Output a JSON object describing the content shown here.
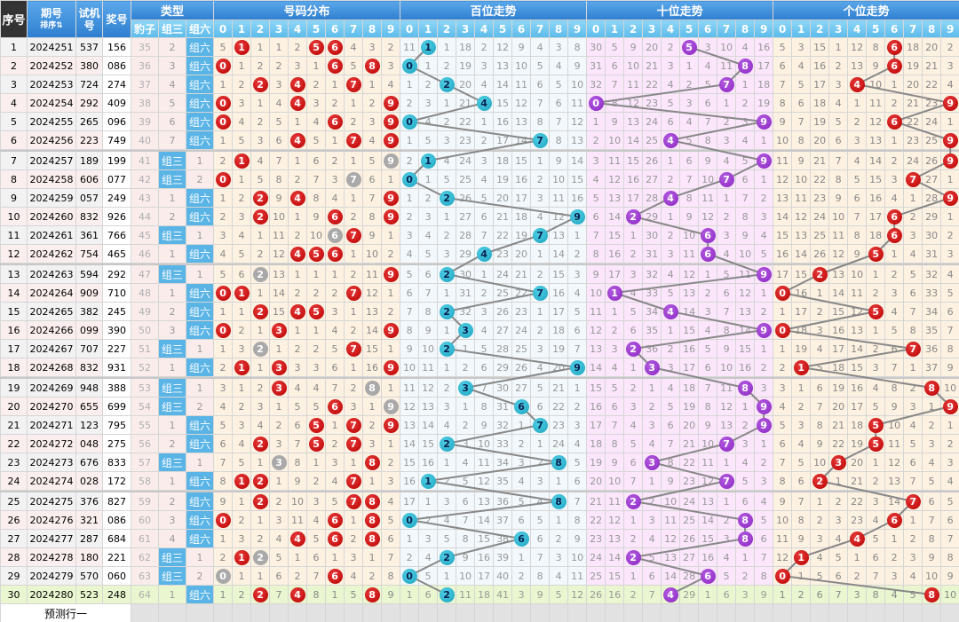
{
  "header": {
    "seq": "序号",
    "issue": "期号",
    "sort_label": "排序",
    "test": "试机号",
    "prize": "奖号",
    "type": "类型",
    "type_cols": [
      "豹子",
      "组三",
      "组六"
    ],
    "sections": [
      "号码分布",
      "百位走势",
      "十位走势",
      "个位走势"
    ],
    "digits": [
      "0",
      "1",
      "2",
      "3",
      "4",
      "5",
      "6",
      "7",
      "8",
      "9"
    ]
  },
  "colors": {
    "dist_hit": "#cc0000",
    "dup_hit": "#a9a9a9",
    "hundreds": "#29b6d0",
    "tens": "#9933cc",
    "units": "#cc0000",
    "line": "#888888"
  },
  "first_row_omissions": {
    "dist": [
      5,
      null,
      1,
      1,
      2,
      null,
      null,
      4,
      3,
      2
    ],
    "hundreds": [
      11,
      null,
      1,
      18,
      2,
      12,
      9,
      4,
      3,
      8
    ],
    "tens": [
      30,
      5,
      9,
      20,
      2,
      null,
      3,
      10,
      4,
      16
    ],
    "units": [
      5,
      3,
      15,
      1,
      12,
      8,
      null,
      18,
      20,
      2
    ]
  },
  "rows": [
    {
      "seq": "1",
      "issue": "2024251",
      "test": "537",
      "prize": "156",
      "baozi": "35",
      "zusan": "2",
      "zuliu": "组六"
    },
    {
      "seq": "2",
      "issue": "2024252",
      "test": "380",
      "prize": "086",
      "baozi": "36",
      "zusan": "3",
      "zuliu": "组六"
    },
    {
      "seq": "3",
      "issue": "2024253",
      "test": "724",
      "prize": "274",
      "baozi": "37",
      "zusan": "4",
      "zuliu": "组六"
    },
    {
      "seq": "4",
      "issue": "2024254",
      "test": "292",
      "prize": "409",
      "baozi": "38",
      "zusan": "5",
      "zuliu": "组六"
    },
    {
      "seq": "5",
      "issue": "2024255",
      "test": "265",
      "prize": "096",
      "baozi": "39",
      "zusan": "6",
      "zuliu": "组六"
    },
    {
      "seq": "6",
      "issue": "2024256",
      "test": "223",
      "prize": "749",
      "baozi": "40",
      "zusan": "7",
      "zuliu": "组六"
    },
    {
      "seq": "7",
      "issue": "2024257",
      "test": "189",
      "prize": "199",
      "baozi": "41",
      "zusan": "组三",
      "zuliu": "1"
    },
    {
      "seq": "8",
      "issue": "2024258",
      "test": "606",
      "prize": "077",
      "baozi": "42",
      "zusan": "组三",
      "zuliu": "2"
    },
    {
      "seq": "9",
      "issue": "2024259",
      "test": "057",
      "prize": "249",
      "baozi": "43",
      "zusan": "1",
      "zuliu": "组六"
    },
    {
      "seq": "10",
      "issue": "2024260",
      "test": "832",
      "prize": "926",
      "baozi": "44",
      "zusan": "2",
      "zuliu": "组六"
    },
    {
      "seq": "11",
      "issue": "2024261",
      "test": "361",
      "prize": "766",
      "baozi": "45",
      "zusan": "组三",
      "zuliu": "1"
    },
    {
      "seq": "12",
      "issue": "2024262",
      "test": "754",
      "prize": "465",
      "baozi": "46",
      "zusan": "1",
      "zuliu": "组六"
    },
    {
      "seq": "13",
      "issue": "2024263",
      "test": "594",
      "prize": "292",
      "baozi": "47",
      "zusan": "组三",
      "zuliu": "1"
    },
    {
      "seq": "14",
      "issue": "2024264",
      "test": "909",
      "prize": "710",
      "baozi": "48",
      "zusan": "1",
      "zuliu": "组六"
    },
    {
      "seq": "15",
      "issue": "2024265",
      "test": "382",
      "prize": "245",
      "baozi": "49",
      "zusan": "2",
      "zuliu": "组六"
    },
    {
      "seq": "16",
      "issue": "2024266",
      "test": "099",
      "prize": "390",
      "baozi": "50",
      "zusan": "3",
      "zuliu": "组六"
    },
    {
      "seq": "17",
      "issue": "2024267",
      "test": "707",
      "prize": "227",
      "baozi": "51",
      "zusan": "组三",
      "zuliu": "1"
    },
    {
      "seq": "18",
      "issue": "2024268",
      "test": "832",
      "prize": "931",
      "baozi": "52",
      "zusan": "1",
      "zuliu": "组六"
    },
    {
      "seq": "19",
      "issue": "2024269",
      "test": "948",
      "prize": "388",
      "baozi": "53",
      "zusan": "组三",
      "zuliu": "1"
    },
    {
      "seq": "20",
      "issue": "2024270",
      "test": "655",
      "prize": "699",
      "baozi": "54",
      "zusan": "组三",
      "zuliu": "2"
    },
    {
      "seq": "21",
      "issue": "2024271",
      "test": "123",
      "prize": "795",
      "baozi": "55",
      "zusan": "1",
      "zuliu": "组六"
    },
    {
      "seq": "22",
      "issue": "2024272",
      "test": "048",
      "prize": "275",
      "baozi": "56",
      "zusan": "2",
      "zuliu": "组六"
    },
    {
      "seq": "23",
      "issue": "2024273",
      "test": "676",
      "prize": "833",
      "baozi": "57",
      "zusan": "组三",
      "zuliu": "1"
    },
    {
      "seq": "24",
      "issue": "2024274",
      "test": "028",
      "prize": "172",
      "baozi": "58",
      "zusan": "1",
      "zuliu": "组六"
    },
    {
      "seq": "25",
      "issue": "2024275",
      "test": "376",
      "prize": "827",
      "baozi": "59",
      "zusan": "2",
      "zuliu": "组六"
    },
    {
      "seq": "26",
      "issue": "2024276",
      "test": "321",
      "prize": "086",
      "baozi": "60",
      "zusan": "3",
      "zuliu": "组六"
    },
    {
      "seq": "27",
      "issue": "2024277",
      "test": "287",
      "prize": "684",
      "baozi": "61",
      "zusan": "4",
      "zuliu": "组六"
    },
    {
      "seq": "28",
      "issue": "2024278",
      "test": "180",
      "prize": "221",
      "baozi": "62",
      "zusan": "组三",
      "zuliu": "1"
    },
    {
      "seq": "29",
      "issue": "2024279",
      "test": "570",
      "prize": "060",
      "baozi": "63",
      "zusan": "组三",
      "zuliu": "2"
    },
    {
      "seq": "30",
      "issue": "2024280",
      "test": "523",
      "prize": "248",
      "baozi": "64",
      "zusan": "1",
      "zuliu": "组六"
    }
  ],
  "footer": {
    "predict_label": "预测行一"
  }
}
